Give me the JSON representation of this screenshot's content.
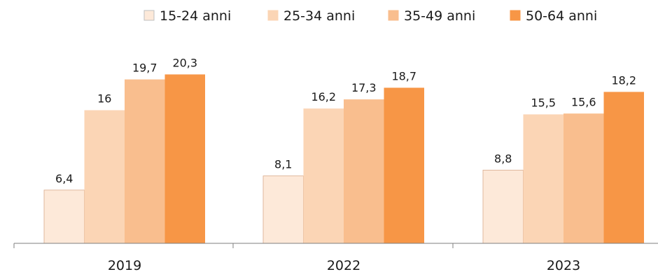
{
  "chart_data": {
    "type": "bar",
    "categories": [
      "2019",
      "2022",
      "2023"
    ],
    "series": [
      {
        "name": "15-24 anni",
        "values": [
          "6,4",
          "8,1",
          "8,8"
        ],
        "color": "#FDE9D9"
      },
      {
        "name": "25-34 anni",
        "values": [
          "16",
          "16,2",
          "15,5"
        ],
        "color": "#FBD5B5"
      },
      {
        "name": "35-49 anni",
        "values": [
          "19,7",
          "17,3",
          "15,6"
        ],
        "color": "#F9BE8E"
      },
      {
        "name": "50-64 anni",
        "values": [
          "20,3",
          "18,7",
          "18,2"
        ],
        "color": "#F79646"
      }
    ],
    "ylim": [
      0,
      23.5
    ],
    "legend_position": "top",
    "grid": false
  }
}
